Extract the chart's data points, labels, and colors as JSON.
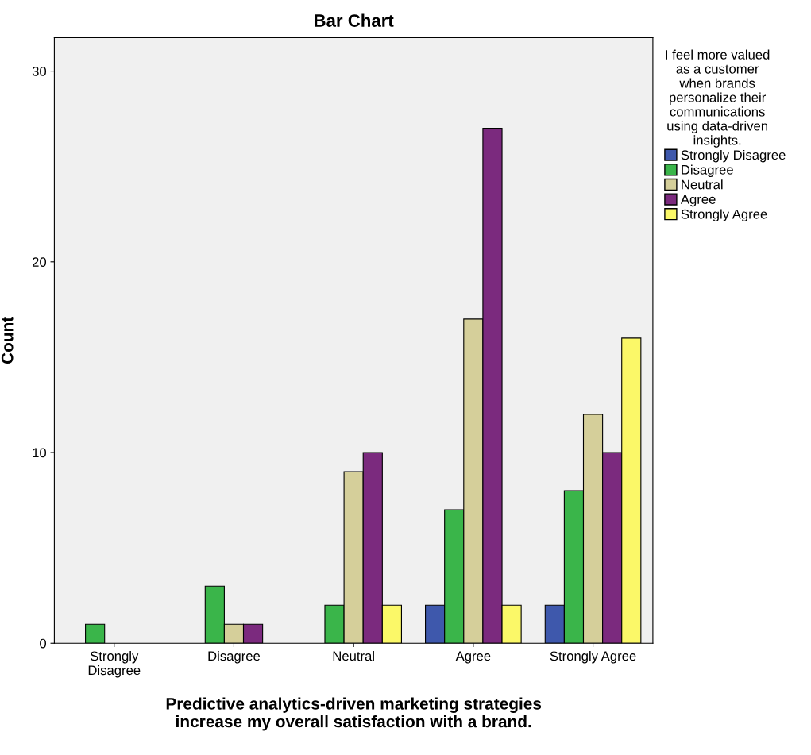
{
  "chart_data": {
    "type": "bar",
    "title": "Bar Chart",
    "xlabel": "Predictive analytics-driven marketing strategies\nincrease my overall satisfaction with a brand.",
    "ylabel": "Count",
    "legend_title": "I feel more valued\nas a customer\nwhen brands\npersonalize their\ncommunications\nusing data-driven\ninsights.",
    "categories": [
      "Strongly\nDisagree",
      "Disagree",
      "Neutral",
      "Agree",
      "Strongly Agree"
    ],
    "series": [
      {
        "name": "Strongly Disagree",
        "color": "#3e58ac",
        "values": [
          null,
          null,
          null,
          2,
          2
        ]
      },
      {
        "name": "Disagree",
        "color": "#3ab54a",
        "values": [
          1,
          3,
          2,
          7,
          8
        ]
      },
      {
        "name": "Neutral",
        "color": "#d5cf9a",
        "values": [
          null,
          1,
          9,
          17,
          12
        ]
      },
      {
        "name": "Agree",
        "color": "#7b2a7e",
        "values": [
          null,
          1,
          10,
          27,
          10
        ]
      },
      {
        "name": "Strongly Agree",
        "color": "#fbf868",
        "values": [
          null,
          null,
          2,
          2,
          16
        ]
      }
    ],
    "ylim": [
      0,
      31.75
    ],
    "yticks": [
      0,
      10,
      20,
      30
    ],
    "grid": false,
    "legend": "right"
  }
}
